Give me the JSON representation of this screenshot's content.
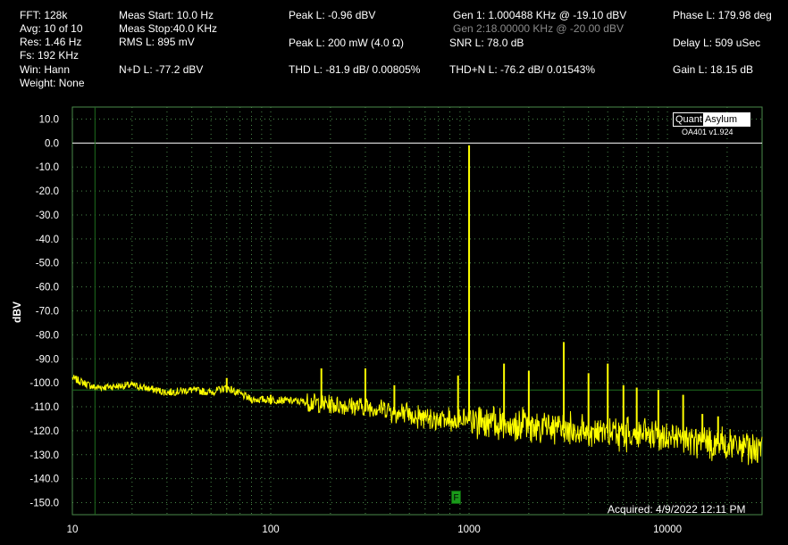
{
  "stats": {
    "fft": "FFT:  128k",
    "avg": "Avg: 10 of 10",
    "res": "Res: 1.46 Hz",
    "fs": "Fs: 192 KHz",
    "win": "Win: Hann",
    "weight": "Weight: None",
    "meas_start": "Meas Start: 10.0 Hz",
    "meas_stop": "Meas Stop:40.0 KHz",
    "rms": "RMS L: 895 mV",
    "nd": "N+D L: -77.2 dBV",
    "peak_dbv": "Peak L: -0.96 dBV",
    "peak_mw": "Peak L: 200 mW (4.0 Ω)",
    "thd": "THD L: -81.9 dB/ 0.00805%",
    "gen1": "Gen 1: 1.000488 KHz @ -19.10  dBV",
    "gen2": "Gen 2:18.00000 KHz @ -20.00  dBV",
    "snr": "SNR L: 78.0 dB",
    "thdn": "THD+N L: -76.2 dB/ 0.01543%",
    "phase": "Phase L: 179.98 deg",
    "delay": "Delay L: 509 uSec",
    "gain": "Gain L: 18.15 dB"
  },
  "logo": {
    "part1": "Quant",
    "part2": "Asylum"
  },
  "version": "OA401 v1.924",
  "acquired": "Acquired: 4/9/2022  12:11 PM",
  "marker_label": "F",
  "colors": {
    "background": "#000000",
    "trace": "#ffff00",
    "grid": "#4a8a4a",
    "reference": "#1f6f1f",
    "zero_line": "#ffffff"
  },
  "chart_data": {
    "type": "line",
    "title": "",
    "xlabel": "",
    "ylabel": "dBV",
    "xscale": "log",
    "xlim": [
      10,
      30000
    ],
    "ylim": [
      -155,
      15
    ],
    "x_ticks": [
      10,
      100,
      1000,
      10000
    ],
    "x_tick_labels": [
      "10",
      "100",
      "1000",
      "10000"
    ],
    "y_ticks": [
      10,
      0,
      -10,
      -20,
      -30,
      -40,
      -50,
      -60,
      -70,
      -80,
      -90,
      -100,
      -110,
      -120,
      -130,
      -140,
      -150
    ],
    "y_tick_labels": [
      "10.0",
      "0.0",
      "-10.0",
      "-20.0",
      "-30.0",
      "-40.0",
      "-50.0",
      "-60.0",
      "-70.0",
      "-80.0",
      "-90.0",
      "-100.0",
      "-110.0",
      "-120.0",
      "-130.0",
      "-140.0",
      "-150.0"
    ],
    "grid": true,
    "reference_level_dbv": -103,
    "reference_freq_hz": 13,
    "zero_dbv_line": 0,
    "series": [
      {
        "x": [
          10,
          13,
          20,
          30,
          40,
          50,
          60,
          80,
          100,
          150,
          200,
          300,
          400,
          600,
          800,
          1000,
          1500,
          2000,
          3000,
          5000,
          8000,
          12000,
          20000,
          30000
        ],
        "y": [
          -98,
          -102,
          -101,
          -104,
          -103,
          -104,
          -102,
          -107,
          -107,
          -108,
          -109,
          -110,
          -111,
          -112,
          -113,
          -114,
          -115,
          -116,
          -117,
          -119,
          -120,
          -122,
          -124,
          -126
        ]
      }
    ],
    "peaks": [
      {
        "x": 60,
        "y": -98
      },
      {
        "x": 100,
        "y": -105
      },
      {
        "x": 180,
        "y": -94
      },
      {
        "x": 300,
        "y": -94
      },
      {
        "x": 420,
        "y": -101
      },
      {
        "x": 880,
        "y": -97
      },
      {
        "x": 1000,
        "y": -1.0
      },
      {
        "x": 1500,
        "y": -92
      },
      {
        "x": 2000,
        "y": -95
      },
      {
        "x": 3000,
        "y": -83
      },
      {
        "x": 4000,
        "y": -96
      },
      {
        "x": 5000,
        "y": -92
      },
      {
        "x": 6000,
        "y": -101
      },
      {
        "x": 7000,
        "y": -102
      },
      {
        "x": 9000,
        "y": -103
      },
      {
        "x": 12000,
        "y": -105
      },
      {
        "x": 15000,
        "y": -113
      },
      {
        "x": 18000,
        "y": -114
      }
    ]
  }
}
